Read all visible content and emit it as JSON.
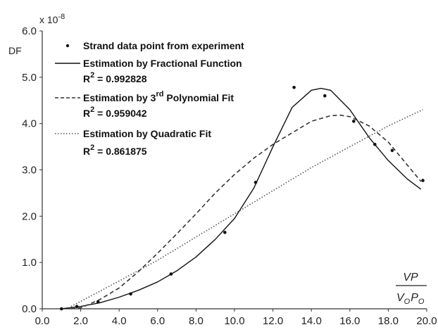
{
  "chart_data": {
    "type": "line",
    "title": "",
    "xlabel": {
      "numerator": "VP",
      "denominator_v": "V",
      "denominator_sub1": "O",
      "denominator_p": "P",
      "denominator_sub2": "O"
    },
    "ylabel": "DF",
    "y_multiplier": {
      "base": "x 10",
      "exponent": "-8"
    },
    "xlim": [
      0.0,
      20.0
    ],
    "ylim": [
      0.0,
      6.0
    ],
    "x_ticks": [
      "0.0",
      "2.0",
      "4.0",
      "6.0",
      "8.0",
      "10.0",
      "12.0",
      "14.0",
      "16.0",
      "18.0",
      "20.0"
    ],
    "y_ticks": [
      "0.0",
      "1.0",
      "2.0",
      "3.0",
      "4.0",
      "5.0",
      "6.0"
    ],
    "grid": false,
    "legend_position": "top-left",
    "legend": [
      {
        "name": "Strand data point from experiment",
        "style": "marker"
      },
      {
        "name": "Estimation by Fractional Function",
        "style": "solid",
        "r2_label": "R",
        "r2_exp": "2",
        "r2_value": " = 0.992828"
      },
      {
        "name_prefix": "Estimation by 3",
        "name_sup": "rd",
        "name_suffix": " Polynomial Fit",
        "style": "dashed",
        "r2_label": "R",
        "r2_exp": "2",
        "r2_value": " = 0.959042"
      },
      {
        "name": "Estimation by Quadratic Fit",
        "style": "dotted",
        "r2_label": "R",
        "r2_exp": "2",
        "r2_value": " = 0.861875"
      }
    ],
    "series": [
      {
        "name": "Strand data point from experiment",
        "kind": "scatter",
        "x": [
          1.0,
          1.8,
          2.9,
          4.6,
          6.7,
          9.5,
          11.1,
          13.1,
          14.7,
          16.2,
          17.3,
          18.2,
          19.8
        ],
        "y": [
          0.0,
          0.05,
          0.15,
          0.32,
          0.75,
          1.65,
          2.73,
          4.78,
          4.6,
          4.05,
          3.55,
          3.42,
          2.77
        ]
      },
      {
        "name": "Estimation by Fractional Function",
        "kind": "line",
        "style": "solid",
        "x": [
          1.0,
          2.0,
          3.0,
          4.0,
          5.0,
          6.0,
          7.0,
          8.0,
          9.0,
          10.0,
          11.0,
          12.0,
          13.0,
          14.0,
          14.5,
          15.0,
          16.0,
          17.0,
          18.0,
          19.0,
          19.7
        ],
        "y": [
          0.0,
          0.05,
          0.13,
          0.25,
          0.4,
          0.58,
          0.82,
          1.12,
          1.5,
          1.95,
          2.6,
          3.5,
          4.35,
          4.72,
          4.76,
          4.72,
          4.3,
          3.7,
          3.2,
          2.8,
          2.58
        ]
      },
      {
        "name": "Estimation by 3rd Polynomial Fit",
        "kind": "line",
        "style": "dashed",
        "x": [
          1.5,
          2.0,
          3.0,
          4.0,
          5.0,
          6.0,
          7.0,
          8.0,
          9.0,
          10.0,
          11.0,
          12.0,
          13.0,
          14.0,
          15.0,
          15.5,
          16.0,
          17.0,
          18.0,
          19.0,
          19.7
        ],
        "y": [
          0.0,
          0.02,
          0.2,
          0.45,
          0.8,
          1.2,
          1.62,
          2.05,
          2.5,
          2.9,
          3.25,
          3.55,
          3.8,
          4.05,
          4.17,
          4.18,
          4.15,
          3.95,
          3.6,
          3.1,
          2.75
        ]
      },
      {
        "name": "Estimation by Quadratic Fit",
        "kind": "line",
        "style": "dotted",
        "x": [
          1.5,
          4.0,
          6.0,
          8.0,
          10.0,
          12.0,
          14.0,
          16.0,
          18.0,
          19.8
        ],
        "y": [
          0.05,
          0.6,
          1.05,
          1.55,
          2.05,
          2.55,
          3.05,
          3.5,
          3.95,
          4.3
        ]
      }
    ]
  }
}
